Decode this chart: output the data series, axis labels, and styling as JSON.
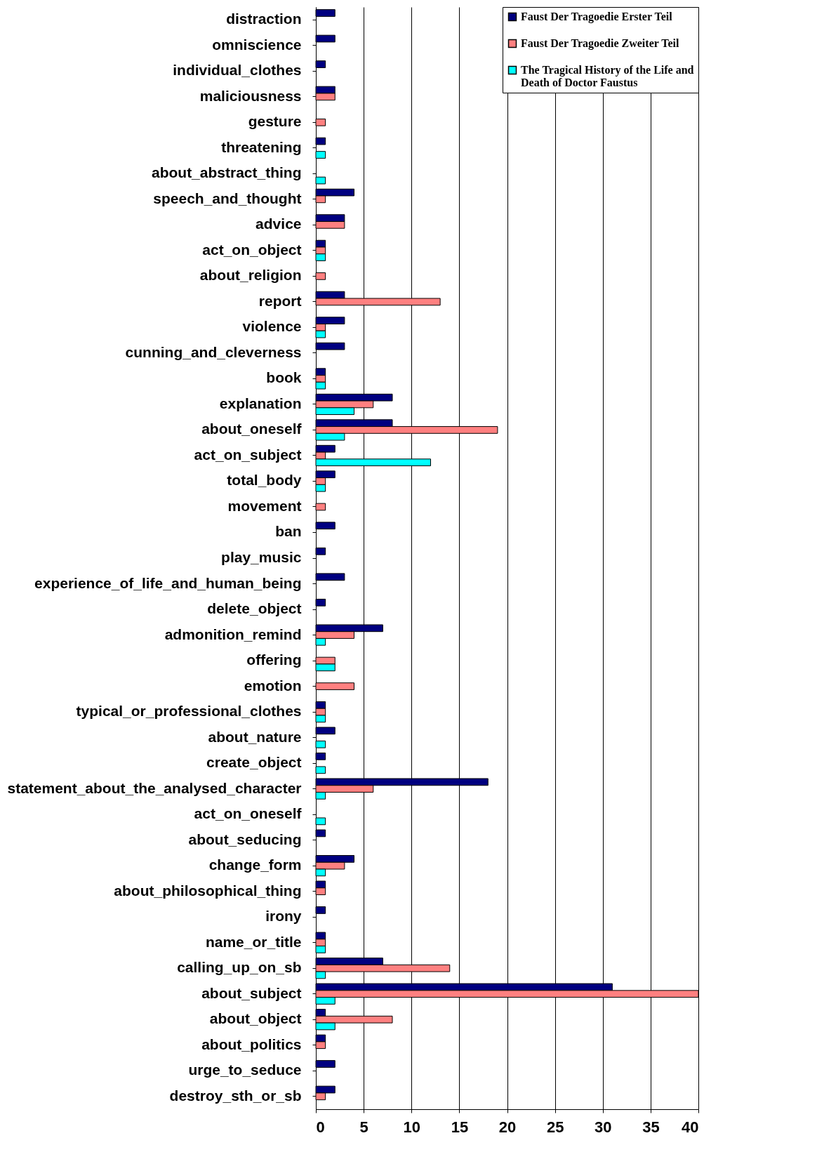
{
  "chart_data": {
    "type": "bar",
    "orientation": "horizontal",
    "categories": [
      "distraction",
      "omniscience",
      "individual_clothes",
      "maliciousness",
      "gesture",
      "threatening",
      "about_abstract_thing",
      "speech_and_thought",
      "advice",
      "act_on_object",
      "about_religion",
      "report",
      "violence",
      "cunning_and_cleverness",
      "book",
      "explanation",
      "about_oneself",
      "act_on_subject",
      "total_body",
      "movement",
      "ban",
      "play_music",
      "experience_of_life_and_human_being",
      "delete_object",
      "admonition_remind",
      "offering",
      "emotion",
      "typical_or_professional_clothes",
      "about_nature",
      "create_object",
      "statement_about_the_analysed_character",
      "act_on_oneself",
      "about_seducing",
      "change_form",
      "about_philosophical_thing",
      "irony",
      "name_or_title",
      "calling_up_on_sb",
      "about_subject",
      "about_object",
      "about_politics",
      "urge_to_seduce",
      "destroy_sth_or_sb"
    ],
    "series": [
      {
        "name": "Faust Der Tragoedie Erster Teil",
        "color": "#000080",
        "values": [
          2,
          2,
          1,
          2,
          null,
          1,
          null,
          4,
          3,
          1,
          null,
          3,
          3,
          3,
          1,
          8,
          8,
          2,
          2,
          null,
          2,
          1,
          3,
          1,
          7,
          null,
          null,
          1,
          2,
          1,
          18,
          null,
          1,
          4,
          1,
          1,
          1,
          7,
          31,
          1,
          1,
          2,
          2
        ]
      },
      {
        "name": "Faust Der Tragoedie Zweiter Teil",
        "color": "#ff8080",
        "values": [
          null,
          null,
          null,
          2,
          1,
          null,
          null,
          1,
          3,
          1,
          1,
          13,
          1,
          null,
          1,
          6,
          19,
          1,
          1,
          1,
          null,
          null,
          null,
          null,
          4,
          2,
          4,
          1,
          null,
          null,
          6,
          null,
          null,
          3,
          1,
          null,
          1,
          14,
          40,
          8,
          1,
          null,
          1
        ]
      },
      {
        "name": "The Tragical History of the Life and Death of Doctor Faustus",
        "color": "#00ffff",
        "values": [
          null,
          null,
          null,
          null,
          null,
          1,
          1,
          null,
          null,
          1,
          null,
          null,
          1,
          null,
          1,
          4,
          3,
          12,
          1,
          null,
          null,
          null,
          null,
          null,
          1,
          2,
          null,
          1,
          1,
          1,
          1,
          1,
          null,
          1,
          null,
          null,
          1,
          1,
          2,
          2,
          null,
          null,
          null
        ]
      }
    ],
    "xlim": [
      0,
      40
    ],
    "xticks": [
      0,
      5,
      10,
      15,
      20,
      25,
      30,
      35,
      40
    ],
    "grid": "x",
    "legend": "top right"
  }
}
